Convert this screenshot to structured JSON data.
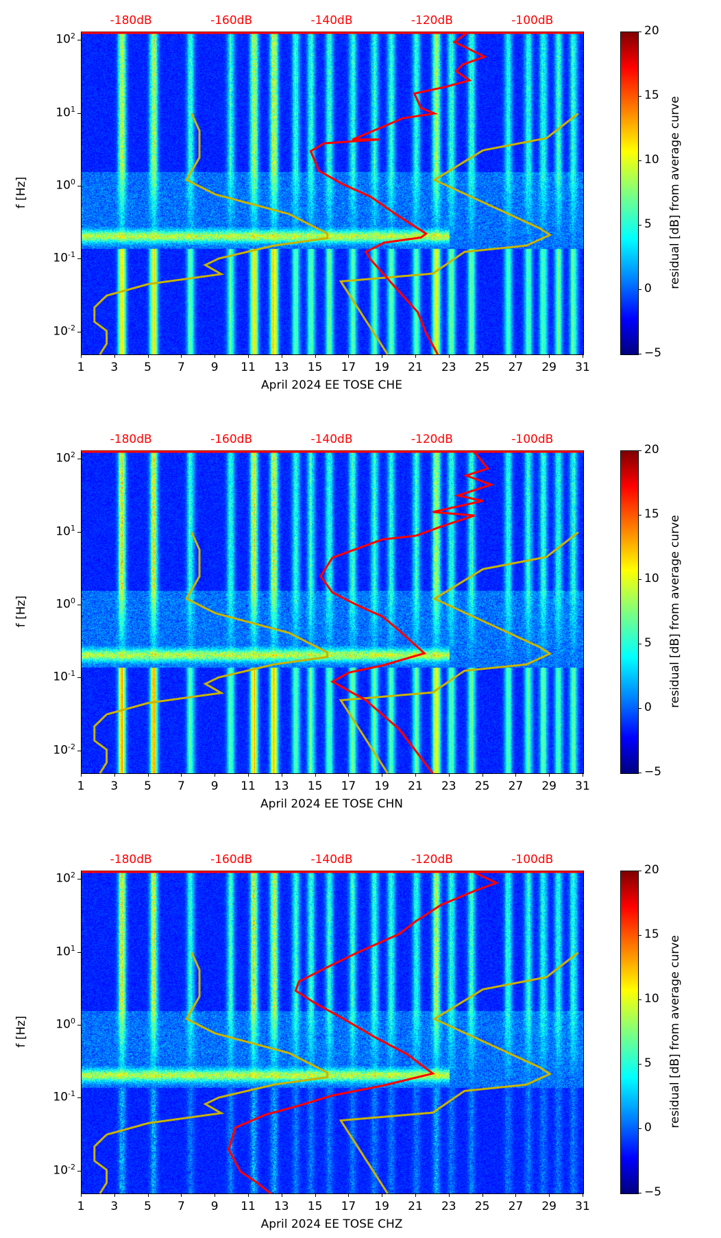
{
  "chart_data": [
    {
      "type": "heatmap",
      "xlabel": "April 2024 EE TOSE  CHE",
      "ylabel": "f [Hz]",
      "channel": "CHE"
    },
    {
      "type": "heatmap",
      "xlabel": "April 2024 EE TOSE  CHN",
      "ylabel": "f [Hz]",
      "channel": "CHN"
    },
    {
      "type": "heatmap",
      "xlabel": "April 2024 EE TOSE  CHZ",
      "ylabel": "f [Hz]",
      "channel": "CHZ"
    }
  ],
  "shared": {
    "xlim": [
      1,
      31
    ],
    "ylim_hz": [
      0.005,
      130
    ],
    "yscale": "log",
    "x_ticks": [
      1,
      3,
      5,
      7,
      9,
      11,
      13,
      15,
      17,
      19,
      21,
      23,
      25,
      27,
      29,
      31
    ],
    "y_ticks": [
      {
        "exp": "-2",
        "value": 0.01
      },
      {
        "exp": "-1",
        "value": 0.1
      },
      {
        "exp": "0",
        "value": 1
      },
      {
        "exp": "1",
        "value": 10
      },
      {
        "exp": "2",
        "value": 100
      }
    ],
    "top_axis": [
      {
        "label": "-180dB",
        "day": 4
      },
      {
        "label": "-160dB",
        "day": 10
      },
      {
        "label": "-140dB",
        "day": 16
      },
      {
        "label": "-120dB",
        "day": 22
      },
      {
        "label": "-100dB",
        "day": 28
      }
    ],
    "colorbar": {
      "label": "residual [dB] from average curve",
      "range": [
        -5,
        20
      ],
      "ticks": [
        "20",
        "15",
        "10",
        "5",
        "0",
        "−5"
      ]
    },
    "colors": {
      "red_curve": "#ff0000",
      "yellow_curve": "#c8b400",
      "top_label": "#ff0000"
    },
    "yellow_curve": [
      [
        [
          7.58,
          10
        ],
        [
          8.05,
          5.8
        ],
        [
          8.05,
          2.5
        ],
        [
          7.28,
          1.23
        ],
        [
          9.0,
          0.78
        ],
        [
          13.4,
          0.42
        ],
        [
          15.7,
          0.226
        ],
        [
          15.7,
          0.196
        ],
        [
          12.5,
          0.155
        ],
        [
          9.2,
          0.103
        ],
        [
          8.4,
          0.084
        ],
        [
          9.35,
          0.063
        ],
        [
          5.0,
          0.046
        ],
        [
          2.5,
          0.032
        ],
        [
          1.77,
          0.022
        ],
        [
          1.77,
          0.014
        ],
        [
          2.5,
          0.0105
        ],
        [
          2.5,
          0.007
        ],
        [
          2.1,
          0.005
        ]
      ],
      [
        [
          30.7,
          10
        ],
        [
          28.8,
          4.6
        ],
        [
          25.0,
          3.13
        ],
        [
          22.1,
          1.23
        ],
        [
          28.4,
          0.267
        ],
        [
          29.0,
          0.217
        ],
        [
          27.6,
          0.155
        ],
        [
          23.9,
          0.127
        ],
        [
          22.0,
          0.064
        ],
        [
          16.5,
          0.05
        ],
        [
          19.3,
          0.005
        ]
      ]
    ]
  },
  "red_curves": [
    [
      [
        24.0,
        125
      ],
      [
        23.3,
        95
      ],
      [
        24.0,
        80
      ],
      [
        25.1,
        60
      ],
      [
        23.8,
        47
      ],
      [
        23.4,
        38
      ],
      [
        24.2,
        28.5
      ],
      [
        22.7,
        23
      ],
      [
        20.9,
        18.8
      ],
      [
        21.3,
        11.9
      ],
      [
        22.1,
        10
      ],
      [
        20.2,
        8.6
      ],
      [
        19.1,
        6.7
      ],
      [
        17.2,
        4.4
      ],
      [
        18.8,
        4.4
      ],
      [
        15.5,
        3.9
      ],
      [
        14.7,
        3.05
      ],
      [
        15.2,
        1.64
      ],
      [
        16.6,
        1.08
      ],
      [
        18.3,
        0.72
      ],
      [
        19.9,
        0.4
      ],
      [
        21.6,
        0.226
      ],
      [
        21.3,
        0.2
      ],
      [
        19.1,
        0.17
      ],
      [
        18.0,
        0.127
      ],
      [
        18.3,
        0.099
      ],
      [
        19.7,
        0.043
      ],
      [
        21.1,
        0.019
      ],
      [
        21.6,
        0.0098
      ],
      [
        22.3,
        0.005
      ]
    ],
    [
      [
        24.5,
        125
      ],
      [
        25.3,
        75
      ],
      [
        24.0,
        60
      ],
      [
        25.5,
        45
      ],
      [
        23.5,
        32
      ],
      [
        25.0,
        27
      ],
      [
        22.0,
        19
      ],
      [
        24.5,
        17
      ],
      [
        22.5,
        12
      ],
      [
        21.0,
        9
      ],
      [
        19.0,
        8
      ],
      [
        17.5,
        6
      ],
      [
        16.0,
        4.5
      ],
      [
        15.3,
        2.5
      ],
      [
        16.0,
        1.5
      ],
      [
        17.5,
        1.0
      ],
      [
        19.0,
        0.7
      ],
      [
        20.0,
        0.45
      ],
      [
        21.5,
        0.22
      ],
      [
        19.0,
        0.15
      ],
      [
        17.0,
        0.12
      ],
      [
        16.0,
        0.09
      ],
      [
        18.0,
        0.05
      ],
      [
        20.0,
        0.02
      ],
      [
        21.0,
        0.01
      ],
      [
        22.0,
        0.005
      ]
    ],
    [
      [
        24.5,
        125
      ],
      [
        25.8,
        90
      ],
      [
        24.5,
        70
      ],
      [
        22.5,
        45
      ],
      [
        21.0,
        27
      ],
      [
        20.0,
        18
      ],
      [
        17.5,
        10
      ],
      [
        15.5,
        6
      ],
      [
        14.0,
        4
      ],
      [
        13.8,
        3
      ],
      [
        15.0,
        2
      ],
      [
        16.5,
        1.3
      ],
      [
        18.5,
        0.7
      ],
      [
        20.5,
        0.4
      ],
      [
        22.0,
        0.22
      ],
      [
        19.0,
        0.15
      ],
      [
        16.0,
        0.11
      ],
      [
        14.0,
        0.08
      ],
      [
        12.0,
        0.06
      ],
      [
        10.2,
        0.04
      ],
      [
        9.8,
        0.02
      ],
      [
        10.5,
        0.01
      ],
      [
        11.5,
        0.007
      ],
      [
        12.3,
        0.005
      ]
    ]
  ]
}
